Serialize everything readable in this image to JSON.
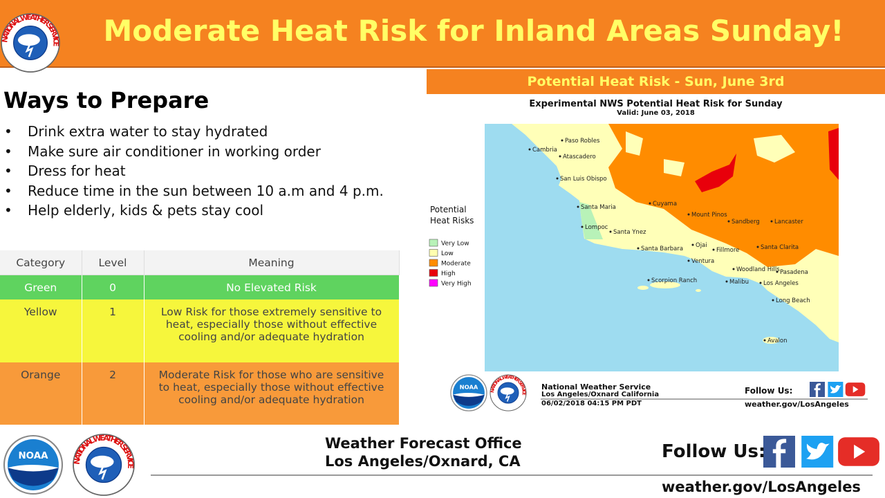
{
  "header": {
    "title": "Moderate Heat Risk for Inland Areas Sunday!"
  },
  "logos": {
    "noaa": "NOAA",
    "nws": "NATIONAL WEATHER SERVICE"
  },
  "prepare": {
    "title": "Ways to Prepare",
    "items": [
      "Drink extra water to stay hydrated",
      "Make sure air conditioner in working order",
      "Dress for heat",
      "Reduce time in the sun between 10 a.m and 4 p.m.",
      "Help elderly, kids & pets stay cool"
    ]
  },
  "table": {
    "columns": [
      "Category",
      "Level",
      "Meaning"
    ],
    "rows": [
      [
        "Green",
        0,
        "No Elevated Risk"
      ],
      [
        "Yellow",
        1,
        "Low Risk for those extremely sensitive to heat, especially those without effective cooling and/or adequate hydration"
      ],
      [
        "Orange",
        2,
        "Moderate Risk for those who are sensitive to heat, especially those without effective cooling and/or adequate hydration"
      ]
    ]
  },
  "banner": "Potential Heat Risk - Sun, June 3rd",
  "map": {
    "title": "Experimental NWS Potential Heat Risk for Sunday",
    "valid": "Valid: June 03, 2018",
    "legend_title": "Potential Heat Risks",
    "legend": [
      {
        "label": "Very Low",
        "color": "#b8f2b8"
      },
      {
        "label": "Low",
        "color": "#ffffb0"
      },
      {
        "label": "Moderate",
        "color": "#ff8c00"
      },
      {
        "label": "High",
        "color": "#e8000b"
      },
      {
        "label": "Very High",
        "color": "#ff00ff"
      }
    ],
    "places": [
      "Paso Robles",
      "Cambria",
      "Atascadero",
      "San Luis Obispo",
      "Santa Maria",
      "Cuyama",
      "Mount Pinos",
      "Sandberg",
      "Lancaster",
      "Lompoc",
      "Santa Ynez",
      "Santa Barbara",
      "Ojai",
      "Fillmore",
      "Santa Clarita",
      "Ventura",
      "Woodland Hills",
      "Pasadena",
      "Malibu",
      "Los Angeles",
      "Scorpion Ranch",
      "Long Beach",
      "Avalon"
    ],
    "footer": {
      "office": "National Weather Service",
      "location": "Los Angeles/Oxnard California",
      "timestamp": "06/02/2018 04:15 PM PDT",
      "follow": "Follow Us:",
      "url": "weather.gov/LosAngeles"
    }
  },
  "footer": {
    "office": "Weather Forecast Office",
    "location": "Los Angeles/Oxnard, CA",
    "follow": "Follow Us:",
    "url": "weather.gov/LosAngeles"
  }
}
